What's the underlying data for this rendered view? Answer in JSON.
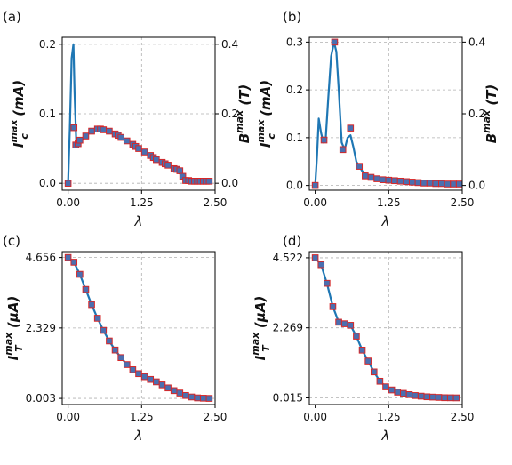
{
  "chart_data": [
    {
      "panel": "(a)",
      "type": "line",
      "xlabel": "λ",
      "ylabel_main": "I",
      "ylabel_sub": "c",
      "ylabel_sup": "max",
      "ylabel_unit": "(mA)",
      "ylabel_right_main": "B",
      "ylabel_right_sup": "max",
      "ylabel_right_unit": "(T)",
      "xlim": [
        -0.1,
        2.5
      ],
      "ylim": [
        -0.01,
        0.21
      ],
      "xticks": [
        0.0,
        1.25,
        2.5
      ],
      "xtick_labels": [
        "0.00",
        "1.25",
        "2.50"
      ],
      "yticks": [
        0.0,
        0.1,
        0.2
      ],
      "ytick_labels": [
        "0.0",
        "0.1",
        "0.2"
      ],
      "y2ticks": [
        0.0,
        0.1,
        0.2
      ],
      "y2tick_labels": [
        "0.0",
        "0.2",
        "0.4"
      ],
      "grid": true,
      "series": [
        {
          "role": "line",
          "color": "#1f77b4",
          "x": [
            0.0,
            0.03,
            0.06,
            0.09,
            0.11,
            0.14,
            0.18,
            0.22,
            0.3,
            0.4,
            0.5,
            0.6,
            0.7,
            0.8,
            0.9,
            1.0,
            1.1,
            1.2,
            1.3,
            1.4,
            1.5,
            1.6,
            1.7,
            1.8,
            1.85,
            1.95,
            2.0,
            2.05,
            2.1,
            2.2,
            2.3,
            2.4
          ],
          "y": [
            0.0,
            0.08,
            0.18,
            0.2,
            0.13,
            0.055,
            0.058,
            0.062,
            0.068,
            0.075,
            0.079,
            0.078,
            0.075,
            0.07,
            0.066,
            0.06,
            0.055,
            0.05,
            0.045,
            0.04,
            0.034,
            0.03,
            0.026,
            0.021,
            0.018,
            0.01,
            0.004,
            0.003,
            0.002,
            0.002,
            0.002,
            0.002
          ]
        },
        {
          "role": "markers",
          "color": "#d62728",
          "x": [
            0.0,
            0.1,
            0.13,
            0.17,
            0.2,
            0.3,
            0.4,
            0.5,
            0.55,
            0.6,
            0.7,
            0.8,
            0.85,
            0.9,
            1.0,
            1.1,
            1.15,
            1.2,
            1.3,
            1.4,
            1.45,
            1.5,
            1.6,
            1.65,
            1.7,
            1.8,
            1.85,
            1.9,
            1.95,
            2.0,
            2.05,
            2.1,
            2.15,
            2.2,
            2.25,
            2.3,
            2.35,
            2.4
          ],
          "y": [
            0.0,
            0.08,
            0.055,
            0.057,
            0.062,
            0.068,
            0.075,
            0.078,
            0.078,
            0.077,
            0.075,
            0.071,
            0.069,
            0.066,
            0.061,
            0.056,
            0.053,
            0.05,
            0.045,
            0.04,
            0.037,
            0.034,
            0.03,
            0.028,
            0.026,
            0.021,
            0.02,
            0.018,
            0.01,
            0.004,
            0.004,
            0.003,
            0.003,
            0.003,
            0.003,
            0.003,
            0.003,
            0.003
          ]
        }
      ]
    },
    {
      "panel": "(b)",
      "type": "line",
      "xlabel": "λ",
      "ylabel_main": "I",
      "ylabel_sub": "c",
      "ylabel_sup": "max",
      "ylabel_unit": "(mA)",
      "ylabel_right_main": "B",
      "ylabel_right_sup": "max",
      "ylabel_right_unit": "(T)",
      "xlim": [
        -0.1,
        2.5
      ],
      "ylim": [
        -0.01,
        0.31
      ],
      "xticks": [
        0.0,
        1.25,
        2.5
      ],
      "xtick_labels": [
        "0.00",
        "1.25",
        "2.50"
      ],
      "yticks": [
        0.0,
        0.1,
        0.2,
        0.3
      ],
      "ytick_labels": [
        "0.0",
        "0.1",
        "0.2",
        "0.3"
      ],
      "y2ticks": [
        0.0,
        0.15,
        0.3
      ],
      "y2tick_labels": [
        "0.0",
        "0.2",
        "0.4"
      ],
      "grid": true,
      "series": [
        {
          "role": "line",
          "color": "#1f77b4",
          "x": [
            0.0,
            0.03,
            0.06,
            0.1,
            0.14,
            0.18,
            0.22,
            0.27,
            0.32,
            0.36,
            0.4,
            0.45,
            0.5,
            0.55,
            0.6,
            0.65,
            0.7,
            0.8,
            0.9,
            1.0,
            1.1,
            1.2,
            1.4,
            1.6,
            1.8,
            2.0,
            2.2,
            2.4
          ],
          "y": [
            0.0,
            0.06,
            0.14,
            0.11,
            0.09,
            0.1,
            0.18,
            0.27,
            0.3,
            0.28,
            0.2,
            0.09,
            0.075,
            0.1,
            0.105,
            0.08,
            0.05,
            0.03,
            0.02,
            0.015,
            0.012,
            0.01,
            0.008,
            0.006,
            0.005,
            0.004,
            0.003,
            0.003
          ]
        },
        {
          "role": "markers",
          "color": "#d62728",
          "x": [
            0.0,
            0.15,
            0.33,
            0.47,
            0.6,
            0.75,
            0.85,
            0.95,
            1.05,
            1.15,
            1.25,
            1.35,
            1.45,
            1.55,
            1.65,
            1.75,
            1.85,
            1.95,
            2.05,
            2.15,
            2.25,
            2.35,
            2.45
          ],
          "y": [
            0.0,
            0.095,
            0.3,
            0.075,
            0.12,
            0.04,
            0.02,
            0.017,
            0.014,
            0.012,
            0.011,
            0.01,
            0.009,
            0.008,
            0.007,
            0.006,
            0.005,
            0.005,
            0.004,
            0.004,
            0.003,
            0.003,
            0.003
          ]
        }
      ]
    },
    {
      "panel": "(c)",
      "type": "line",
      "xlabel": "λ",
      "ylabel_main": "I",
      "ylabel_sub": "T",
      "ylabel_sup": "max",
      "ylabel_unit": "(μA)",
      "xlim": [
        -0.1,
        2.5
      ],
      "ylim": [
        -0.2,
        4.85
      ],
      "xticks": [
        0.0,
        1.25,
        2.5
      ],
      "xtick_labels": [
        "0.00",
        "1.25",
        "2.50"
      ],
      "yticks": [
        0.003,
        2.329,
        4.656
      ],
      "ytick_labels": [
        "0.003",
        "2.329",
        "4.656"
      ],
      "grid": true,
      "series": [
        {
          "role": "line",
          "color": "#1f77b4",
          "x": [
            0.0,
            0.1,
            0.2,
            0.3,
            0.4,
            0.5,
            0.6,
            0.7,
            0.8,
            0.9,
            1.0,
            1.1,
            1.2,
            1.3,
            1.4,
            1.5,
            1.6,
            1.7,
            1.8,
            1.9,
            2.0,
            2.1,
            2.2,
            2.3,
            2.4
          ],
          "y": [
            4.656,
            4.5,
            4.1,
            3.6,
            3.1,
            2.65,
            2.25,
            1.9,
            1.6,
            1.35,
            1.12,
            0.95,
            0.82,
            0.72,
            0.63,
            0.55,
            0.45,
            0.35,
            0.26,
            0.18,
            0.1,
            0.05,
            0.02,
            0.01,
            0.003
          ]
        },
        {
          "role": "markers",
          "color": "#d62728",
          "x": [
            0.0,
            0.1,
            0.2,
            0.3,
            0.4,
            0.5,
            0.6,
            0.7,
            0.8,
            0.9,
            1.0,
            1.1,
            1.2,
            1.3,
            1.4,
            1.5,
            1.6,
            1.7,
            1.8,
            1.9,
            2.0,
            2.1,
            2.2,
            2.3,
            2.4
          ],
          "y": [
            4.656,
            4.5,
            4.1,
            3.6,
            3.1,
            2.65,
            2.25,
            1.9,
            1.6,
            1.35,
            1.12,
            0.95,
            0.82,
            0.72,
            0.63,
            0.55,
            0.45,
            0.35,
            0.26,
            0.18,
            0.1,
            0.05,
            0.02,
            0.01,
            0.003
          ]
        }
      ]
    },
    {
      "panel": "(d)",
      "type": "line",
      "xlabel": "λ",
      "ylabel_main": "I",
      "ylabel_sub": "T",
      "ylabel_sup": "max",
      "ylabel_unit": "(μA)",
      "xlim": [
        -0.1,
        2.5
      ],
      "ylim": [
        -0.2,
        4.72
      ],
      "xticks": [
        0.0,
        1.25,
        2.5
      ],
      "xtick_labels": [
        "0.00",
        "1.25",
        "2.50"
      ],
      "yticks": [
        0.015,
        2.269,
        4.522
      ],
      "ytick_labels": [
        "0.015",
        "2.269",
        "4.522"
      ],
      "grid": true,
      "series": [
        {
          "role": "line",
          "color": "#1f77b4",
          "x": [
            0.0,
            0.1,
            0.2,
            0.3,
            0.4,
            0.5,
            0.6,
            0.7,
            0.8,
            0.9,
            1.0,
            1.1,
            1.2,
            1.3,
            1.4,
            1.5,
            1.6,
            1.7,
            1.8,
            1.9,
            2.0,
            2.1,
            2.2,
            2.3,
            2.4
          ],
          "y": [
            4.522,
            4.3,
            3.7,
            2.95,
            2.45,
            2.4,
            2.35,
            2.0,
            1.55,
            1.2,
            0.85,
            0.55,
            0.37,
            0.27,
            0.2,
            0.16,
            0.12,
            0.09,
            0.07,
            0.05,
            0.04,
            0.03,
            0.02,
            0.018,
            0.015
          ]
        },
        {
          "role": "markers",
          "color": "#d62728",
          "x": [
            0.0,
            0.1,
            0.2,
            0.3,
            0.4,
            0.5,
            0.6,
            0.7,
            0.8,
            0.9,
            1.0,
            1.1,
            1.2,
            1.3,
            1.4,
            1.5,
            1.6,
            1.7,
            1.8,
            1.9,
            2.0,
            2.1,
            2.2,
            2.3,
            2.4
          ],
          "y": [
            4.522,
            4.3,
            3.7,
            2.95,
            2.45,
            2.4,
            2.35,
            2.0,
            1.55,
            1.2,
            0.85,
            0.55,
            0.37,
            0.27,
            0.2,
            0.16,
            0.12,
            0.09,
            0.07,
            0.05,
            0.04,
            0.03,
            0.02,
            0.018,
            0.015
          ]
        }
      ]
    }
  ]
}
